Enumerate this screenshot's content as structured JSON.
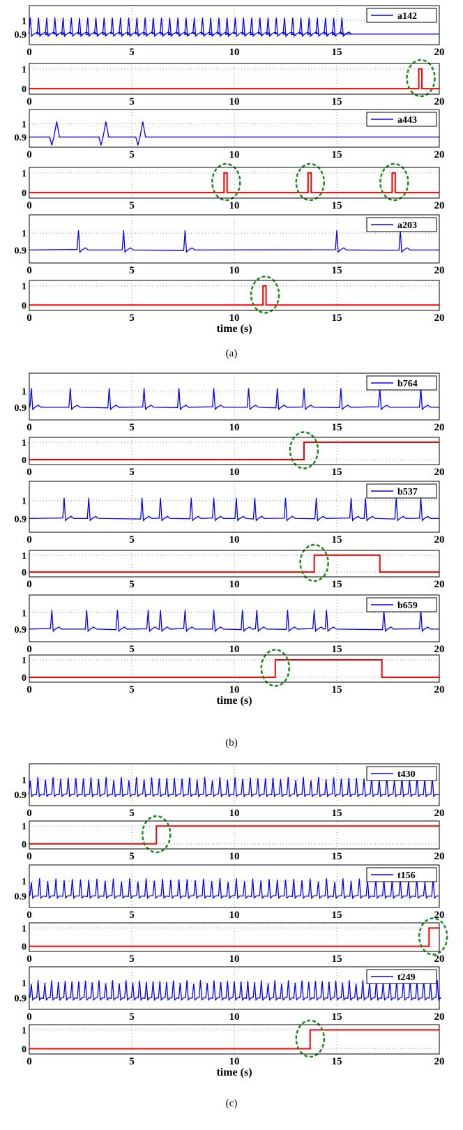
{
  "chart_data": [
    {
      "panel": "(a)",
      "xlabel": "time (s)",
      "xlim": [
        0,
        20
      ],
      "xticks": [
        0,
        5,
        10,
        15,
        20
      ],
      "subplots": [
        {
          "kind": "signal",
          "legend": "a142",
          "yticks": [
            0.9,
            1
          ],
          "ytick_labels": [
            "0.9",
            "1"
          ],
          "color": "#0000ff",
          "description": "dense periodic spikes",
          "beats": [
            0.05,
            0.45,
            0.85,
            1.25,
            1.65,
            2.05,
            2.45,
            2.85,
            3.25,
            3.65,
            4.05,
            4.45,
            4.85,
            5.25,
            5.65,
            6.05,
            6.45,
            6.85,
            7.25,
            7.65,
            8.05,
            8.45,
            8.85,
            9.25,
            9.65,
            10.05,
            10.45,
            10.85,
            11.25,
            11.65,
            12.05,
            12.45,
            12.85,
            13.25,
            13.65,
            14.05,
            14.45,
            14.85,
            15.25
          ],
          "signal_end": 15.3
        },
        {
          "kind": "alarm",
          "yticks": [
            0,
            1
          ],
          "ytick_labels": [
            "0",
            "1"
          ],
          "color": "#ff0000",
          "segments": [
            [
              19.0,
              19.15
            ]
          ],
          "circles": [
            19.1
          ]
        },
        {
          "kind": "signal",
          "legend": "a443",
          "yticks": [
            0.9,
            1
          ],
          "ytick_labels": [
            "0.9",
            "1"
          ],
          "color": "#0000ff",
          "biphasic": [
            1.2,
            3.6,
            5.4
          ]
        },
        {
          "kind": "alarm",
          "yticks": [
            0,
            1
          ],
          "ytick_labels": [
            "0",
            "1"
          ],
          "color": "#ff0000",
          "segments": [
            [
              9.5,
              9.65
            ],
            [
              13.6,
              13.75
            ],
            [
              17.7,
              17.85
            ]
          ],
          "circles": [
            9.6,
            13.7,
            17.8
          ]
        },
        {
          "kind": "signal",
          "legend": "a203",
          "yticks": [
            0.9,
            1
          ],
          "ytick_labels": [
            "0.9",
            "1"
          ],
          "color": "#0000ff",
          "beats": [
            2.4,
            4.6,
            7.6,
            15.0,
            18.1
          ]
        },
        {
          "kind": "alarm",
          "yticks": [
            0,
            1
          ],
          "ytick_labels": [
            "0",
            "1"
          ],
          "color": "#ff0000",
          "segments": [
            [
              11.4,
              11.55
            ]
          ],
          "circles": [
            11.5
          ],
          "show_xlabel": true
        }
      ],
      "caption": "(a)"
    },
    {
      "panel": "(b)",
      "xlabel": "time (s)",
      "xlim": [
        0,
        20
      ],
      "xticks": [
        0,
        5,
        10,
        15,
        20
      ],
      "subplots": [
        {
          "kind": "signal",
          "legend": "b764",
          "yticks": [
            0.9,
            1
          ],
          "ytick_labels": [
            "0.9",
            "1"
          ],
          "color": "#0000ff",
          "beats": [
            0.1,
            2.0,
            3.9,
            5.6,
            7.3,
            9.0,
            10.7,
            12.1,
            13.4,
            15.2,
            17.1,
            19.1
          ]
        },
        {
          "kind": "alarm",
          "yticks": [
            0,
            1
          ],
          "ytick_labels": [
            "0",
            "1"
          ],
          "color": "#ff0000",
          "segments": [
            [
              13.4,
              20.0
            ]
          ],
          "circles": [
            13.4
          ]
        },
        {
          "kind": "signal",
          "legend": "b537",
          "yticks": [
            0.9,
            1
          ],
          "ytick_labels": [
            "0.9",
            "1"
          ],
          "color": "#0000ff",
          "beats": [
            1.7,
            2.9,
            5.5,
            6.4,
            7.9,
            9.0,
            10.1,
            11.0,
            12.5,
            14.0,
            15.7,
            16.4,
            17.9,
            19.1
          ]
        },
        {
          "kind": "alarm",
          "yticks": [
            0,
            1
          ],
          "ytick_labels": [
            "0",
            "1"
          ],
          "color": "#ff0000",
          "segments": [
            [
              13.9,
              17.1
            ]
          ],
          "circles": [
            13.9
          ]
        },
        {
          "kind": "signal",
          "legend": "b659",
          "yticks": [
            0.9,
            1
          ],
          "ytick_labels": [
            "0.9",
            "1"
          ],
          "color": "#0000ff",
          "beats": [
            1.1,
            2.8,
            4.3,
            5.8,
            6.4,
            7.6,
            9.0,
            10.4,
            11.1,
            12.6,
            13.9,
            14.5,
            17.3,
            19.1
          ]
        },
        {
          "kind": "alarm",
          "yticks": [
            0,
            1
          ],
          "ytick_labels": [
            "0",
            "1"
          ],
          "color": "#ff0000",
          "segments": [
            [
              12.0,
              17.2
            ]
          ],
          "circles": [
            12.0
          ],
          "show_xlabel": true
        }
      ],
      "caption": "(b)"
    },
    {
      "panel": "(c)",
      "xlabel": "time (s)",
      "xlim": [
        0,
        20
      ],
      "xticks": [
        0,
        5,
        10,
        15,
        20
      ],
      "subplots": [
        {
          "kind": "signal",
          "legend": "t430",
          "yticks": [
            0.9,
            1
          ],
          "ytick_labels": [
            "0.9",
            "1"
          ],
          "color": "#0000ff",
          "period": 0.37,
          "start": 0.05
        },
        {
          "kind": "alarm",
          "yticks": [
            0,
            1
          ],
          "ytick_labels": [
            "0",
            "1"
          ],
          "color": "#ff0000",
          "segments": [
            [
              6.2,
              20.0
            ]
          ],
          "circles": [
            6.2
          ]
        },
        {
          "kind": "signal",
          "legend": "t156",
          "yticks": [
            0.9,
            1
          ],
          "ytick_labels": [
            "0.9",
            "1"
          ],
          "color": "#0000ff",
          "period": 0.4,
          "start": 0.1
        },
        {
          "kind": "alarm",
          "yticks": [
            0,
            1
          ],
          "ytick_labels": [
            "0",
            "1"
          ],
          "color": "#ff0000",
          "segments": [
            [
              19.5,
              20.0
            ]
          ],
          "circles": [
            19.7
          ]
        },
        {
          "kind": "signal",
          "legend": "t249",
          "yticks": [
            0.9,
            1
          ],
          "ytick_labels": [
            "0.9",
            "1"
          ],
          "color": "#0000ff",
          "period": 0.33,
          "start": 0.1
        },
        {
          "kind": "alarm",
          "yticks": [
            0,
            1
          ],
          "ytick_labels": [
            "0",
            "1"
          ],
          "color": "#ff0000",
          "segments": [
            [
              13.7,
              20.0
            ]
          ],
          "circles": [
            13.7
          ],
          "show_xlabel": true
        }
      ],
      "caption": "(c)"
    }
  ],
  "colors": {
    "signal": "#0000ff",
    "alarm": "#ff0000",
    "circle": "#1a8a1a",
    "grid": "#9a9a9a"
  }
}
